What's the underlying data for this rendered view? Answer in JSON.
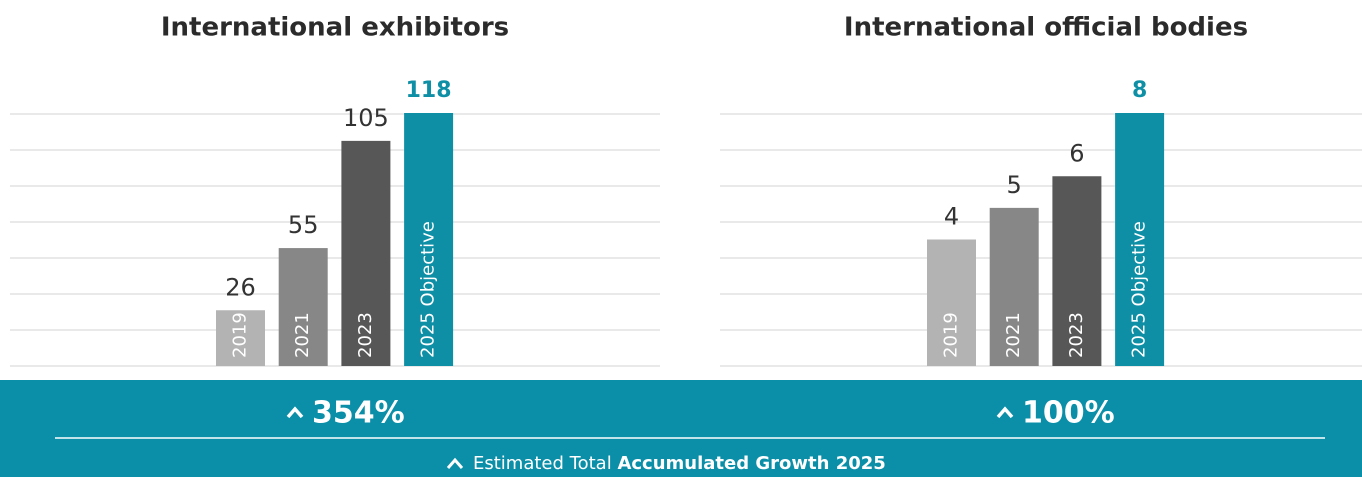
{
  "chart_data": [
    {
      "type": "bar",
      "title": "International exhibitors",
      "categories": [
        "2019",
        "2021",
        "2023",
        "2025 Objective"
      ],
      "values": [
        26,
        55,
        105,
        118
      ],
      "colors": [
        "#b3b3b3",
        "#878787",
        "#575757",
        "#0e8fa6"
      ],
      "ylim": [
        0,
        118
      ],
      "growth": "354%"
    },
    {
      "type": "bar",
      "title": "International official bodies",
      "categories": [
        "2019",
        "2021",
        "2023",
        "2025 Objective"
      ],
      "values": [
        4,
        5,
        6,
        8
      ],
      "colors": [
        "#b3b3b3",
        "#878787",
        "#575757",
        "#0e8fa6"
      ],
      "ylim": [
        0,
        8
      ],
      "growth": "100%"
    }
  ],
  "footer": {
    "text": "Estimated Total",
    "emphasis": "Accumulated Growth 2025"
  }
}
